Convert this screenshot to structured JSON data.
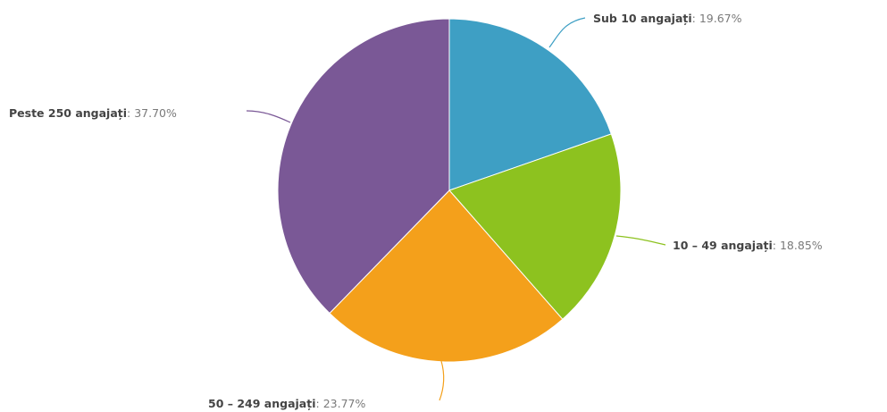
{
  "chart_data": {
    "type": "pie",
    "categories": [
      "Sub 10 angajați",
      "10 – 49 angajați",
      "50 – 249 angajați",
      "Peste 250 angajați"
    ],
    "values": [
      19.67,
      18.85,
      23.77,
      37.7
    ],
    "colors": [
      "#3e9fc4",
      "#8dc21f",
      "#f4a01b",
      "#7a5896"
    ],
    "labels": [
      {
        "name": "Sub 10 angajați",
        "value": "19.67%"
      },
      {
        "name": "10 – 49 angajați",
        "value": "18.85%"
      },
      {
        "name": "50 – 249 angajați",
        "value": "23.77%"
      },
      {
        "name": "Peste 250 angajați",
        "value": "37.70%"
      }
    ],
    "start_angle": "top",
    "direction": "clockwise"
  }
}
